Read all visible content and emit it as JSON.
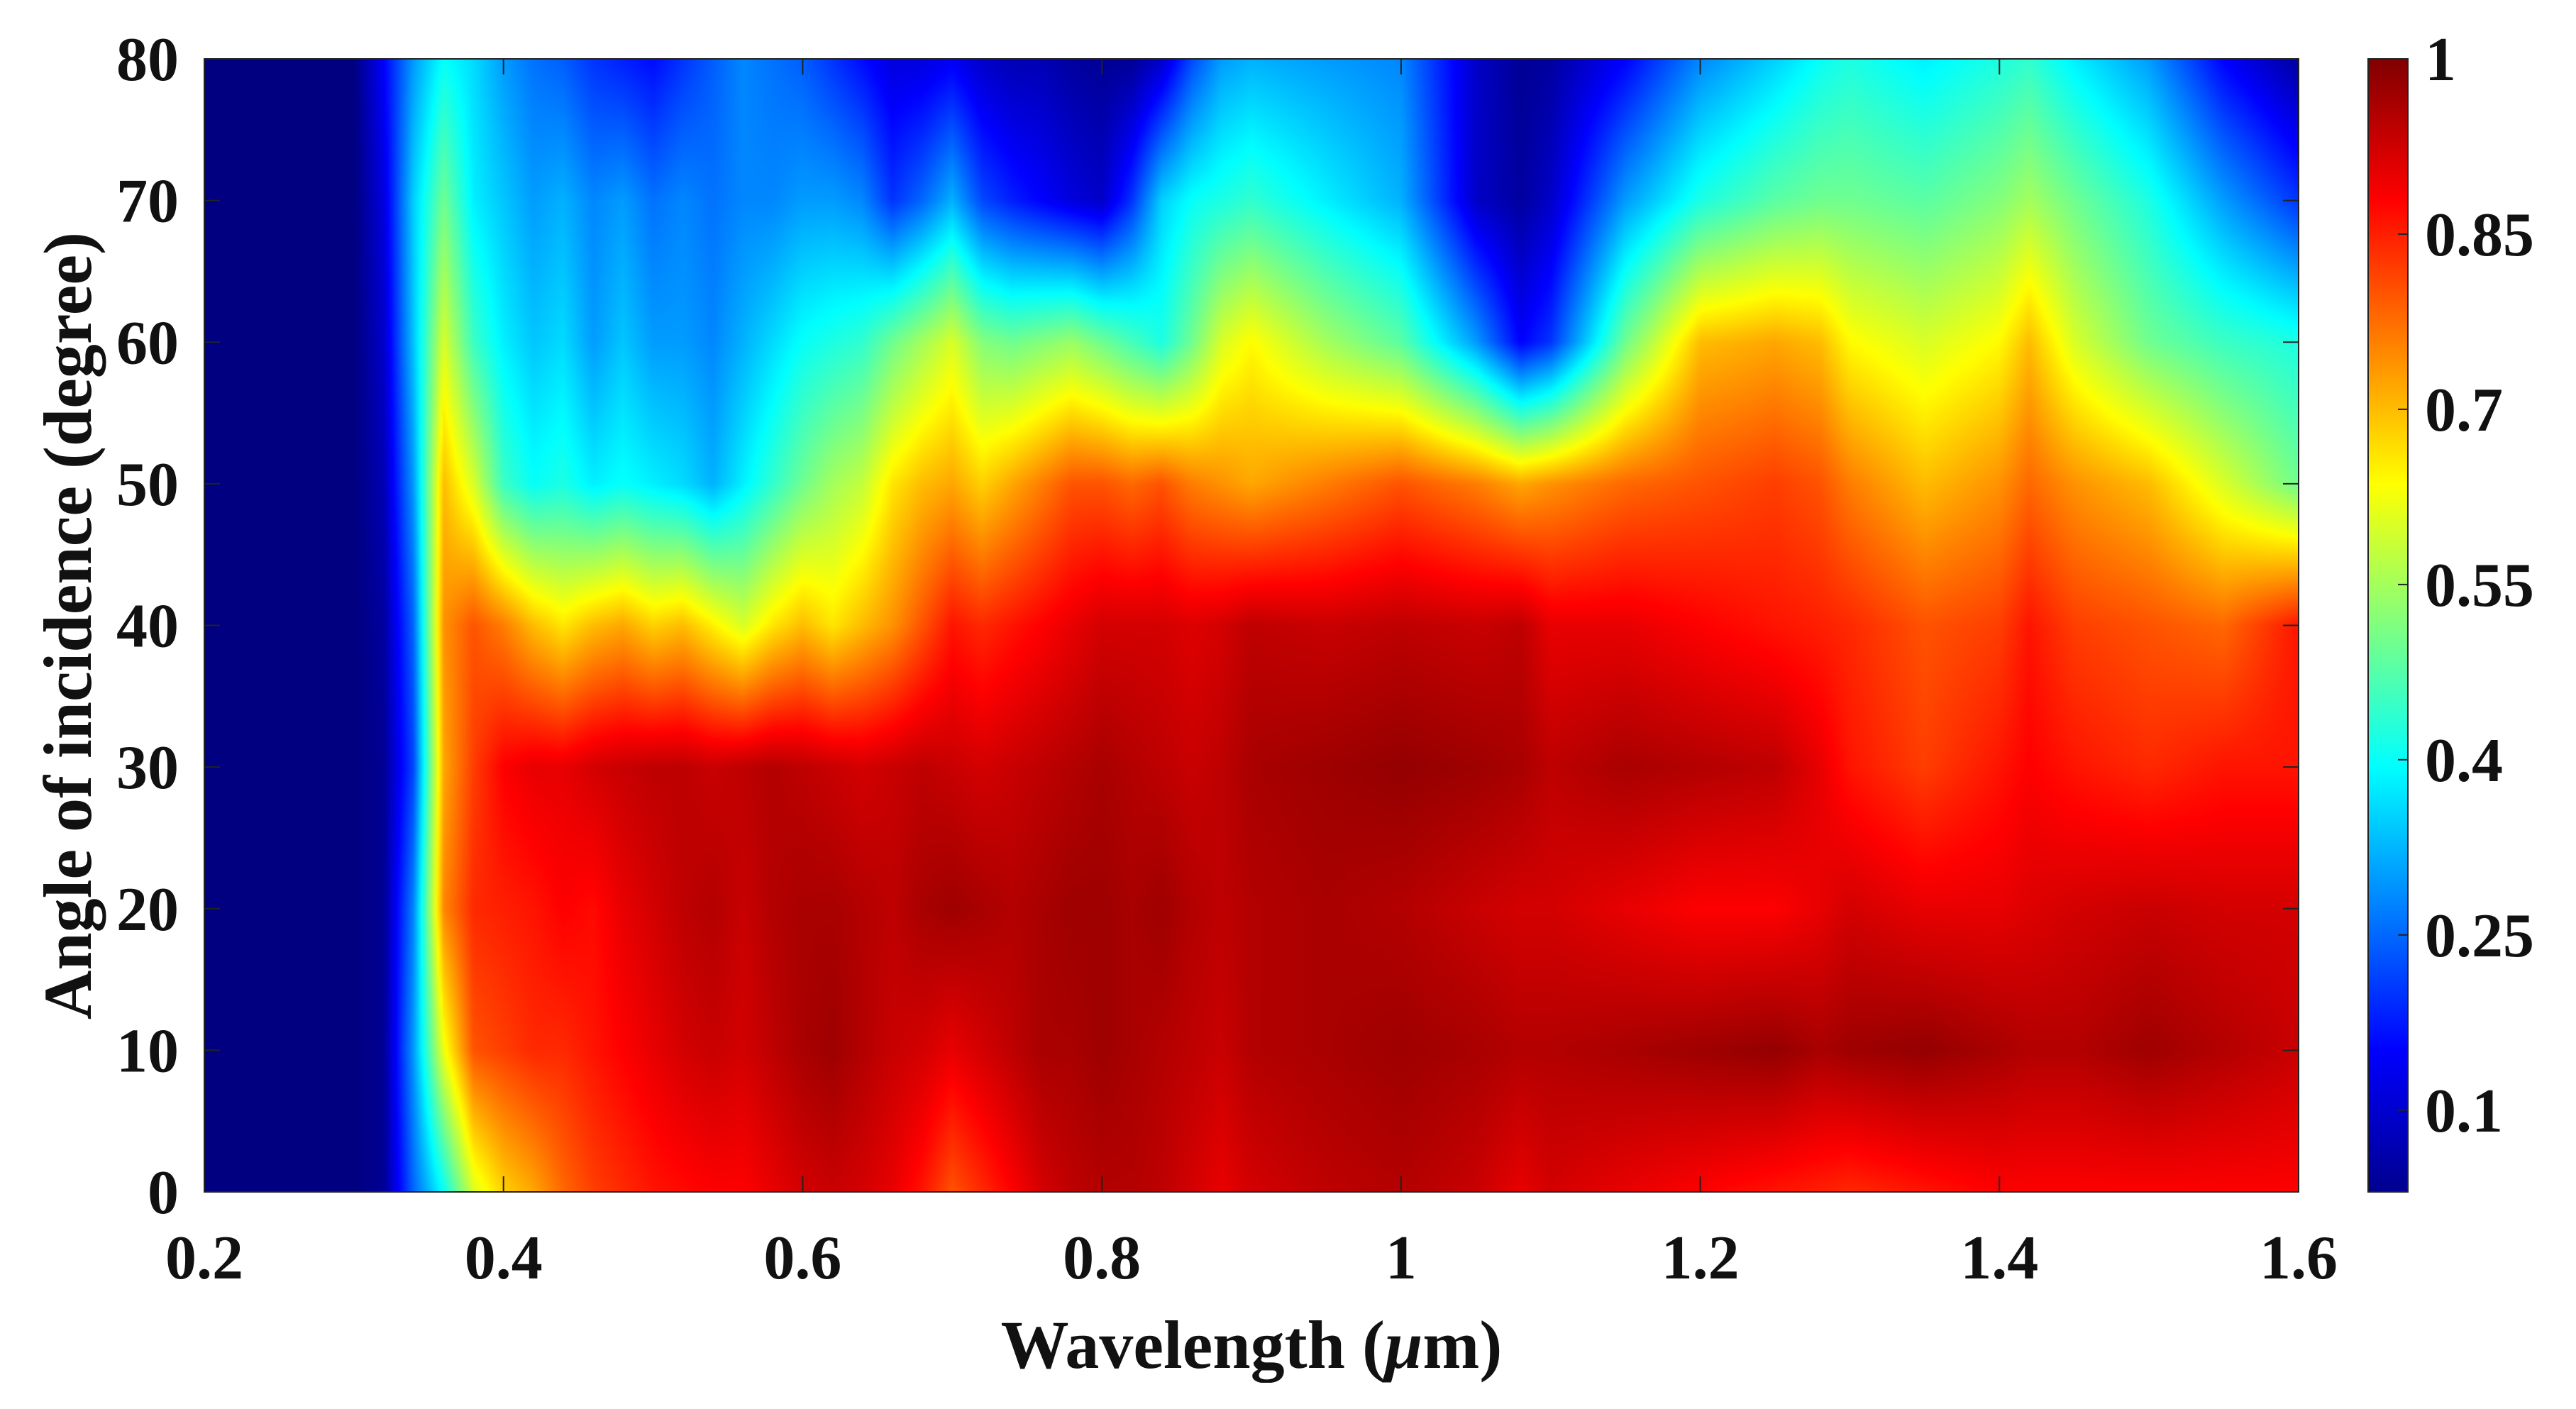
{
  "chart_data": {
    "type": "heatmap",
    "title": "",
    "xlabel": "Wavelength (",
    "xlabel_symbol": "μ",
    "xlabel_unit": "m)",
    "ylabel": "Angle of incidence (degree)",
    "xlim": [
      0.2,
      1.6
    ],
    "ylim": [
      0,
      80
    ],
    "x_ticks": [
      0.2,
      0.4,
      0.6,
      0.8,
      1.0,
      1.2,
      1.4,
      1.6
    ],
    "x_tick_labels": [
      "0.2",
      "0.4",
      "0.6",
      "0.8",
      "1",
      "1.2",
      "1.4",
      "1.6"
    ],
    "y_ticks": [
      0,
      10,
      20,
      30,
      40,
      50,
      60,
      70,
      80
    ],
    "y_tick_labels": [
      "0",
      "10",
      "20",
      "30",
      "40",
      "50",
      "60",
      "70",
      "80"
    ],
    "colorbar": {
      "range": [
        0.03,
        1.0
      ],
      "ticks": [
        0.1,
        0.25,
        0.4,
        0.55,
        0.7,
        0.85,
        1.0
      ],
      "tick_labels": [
        "0.1",
        "0.25",
        "0.4",
        "0.55",
        "0.7",
        "0.85",
        "1"
      ],
      "colormap": "jet"
    },
    "x": [
      0.2,
      0.3,
      0.32,
      0.34,
      0.36,
      0.38,
      0.4,
      0.42,
      0.44,
      0.46,
      0.48,
      0.5,
      0.52,
      0.54,
      0.56,
      0.58,
      0.6,
      0.62,
      0.64,
      0.66,
      0.68,
      0.7,
      0.72,
      0.74,
      0.76,
      0.78,
      0.8,
      0.82,
      0.84,
      0.86,
      0.88,
      0.9,
      0.95,
      1.0,
      1.05,
      1.08,
      1.1,
      1.15,
      1.2,
      1.25,
      1.28,
      1.3,
      1.35,
      1.4,
      1.42,
      1.45,
      1.5,
      1.55,
      1.6
    ],
    "y": [
      0,
      10,
      20,
      30,
      40,
      50,
      60,
      70,
      80
    ],
    "z": [
      [
        0.03,
        0.03,
        0.05,
        0.25,
        0.4,
        0.6,
        0.68,
        0.72,
        0.78,
        0.82,
        0.84,
        0.86,
        0.87,
        0.88,
        0.88,
        0.9,
        0.92,
        0.93,
        0.92,
        0.9,
        0.86,
        0.8,
        0.84,
        0.88,
        0.92,
        0.94,
        0.95,
        0.95,
        0.94,
        0.92,
        0.9,
        0.92,
        0.94,
        0.95,
        0.93,
        0.9,
        0.92,
        0.9,
        0.88,
        0.86,
        0.85,
        0.84,
        0.86,
        0.88,
        0.88,
        0.88,
        0.88,
        0.88,
        0.88
      ],
      [
        0.03,
        0.03,
        0.05,
        0.3,
        0.62,
        0.8,
        0.82,
        0.84,
        0.84,
        0.86,
        0.88,
        0.9,
        0.92,
        0.93,
        0.92,
        0.94,
        0.96,
        0.97,
        0.95,
        0.93,
        0.92,
        0.9,
        0.92,
        0.94,
        0.96,
        0.96,
        0.97,
        0.96,
        0.95,
        0.94,
        0.93,
        0.95,
        0.96,
        0.97,
        0.96,
        0.95,
        0.95,
        0.96,
        0.97,
        0.98,
        0.96,
        0.97,
        0.98,
        0.96,
        0.95,
        0.95,
        0.97,
        0.95,
        0.93
      ],
      [
        0.03,
        0.03,
        0.05,
        0.28,
        0.75,
        0.84,
        0.85,
        0.86,
        0.88,
        0.87,
        0.9,
        0.92,
        0.94,
        0.95,
        0.93,
        0.95,
        0.96,
        0.96,
        0.95,
        0.94,
        0.96,
        0.97,
        0.96,
        0.95,
        0.96,
        0.97,
        0.97,
        0.96,
        0.97,
        0.95,
        0.94,
        0.95,
        0.96,
        0.95,
        0.93,
        0.92,
        0.92,
        0.9,
        0.88,
        0.88,
        0.9,
        0.92,
        0.9,
        0.9,
        0.91,
        0.92,
        0.93,
        0.92,
        0.92
      ],
      [
        0.03,
        0.03,
        0.05,
        0.22,
        0.72,
        0.82,
        0.88,
        0.9,
        0.9,
        0.92,
        0.93,
        0.94,
        0.94,
        0.93,
        0.94,
        0.95,
        0.94,
        0.93,
        0.92,
        0.93,
        0.94,
        0.93,
        0.92,
        0.93,
        0.94,
        0.95,
        0.96,
        0.95,
        0.94,
        0.93,
        0.94,
        0.96,
        0.97,
        0.98,
        0.97,
        0.96,
        0.94,
        0.96,
        0.95,
        0.94,
        0.9,
        0.86,
        0.82,
        0.86,
        0.88,
        0.86,
        0.84,
        0.86,
        0.86
      ],
      [
        0.03,
        0.03,
        0.06,
        0.25,
        0.74,
        0.8,
        0.76,
        0.7,
        0.66,
        0.7,
        0.72,
        0.68,
        0.7,
        0.65,
        0.6,
        0.66,
        0.7,
        0.66,
        0.7,
        0.74,
        0.8,
        0.86,
        0.84,
        0.86,
        0.88,
        0.9,
        0.92,
        0.92,
        0.92,
        0.91,
        0.92,
        0.94,
        0.93,
        0.94,
        0.93,
        0.94,
        0.9,
        0.9,
        0.88,
        0.86,
        0.85,
        0.84,
        0.8,
        0.82,
        0.86,
        0.82,
        0.8,
        0.78,
        0.86
      ],
      [
        0.03,
        0.03,
        0.08,
        0.3,
        0.7,
        0.6,
        0.45,
        0.4,
        0.42,
        0.38,
        0.4,
        0.38,
        0.36,
        0.32,
        0.38,
        0.44,
        0.5,
        0.55,
        0.58,
        0.66,
        0.7,
        0.72,
        0.68,
        0.72,
        0.76,
        0.8,
        0.8,
        0.78,
        0.8,
        0.76,
        0.74,
        0.72,
        0.76,
        0.8,
        0.76,
        0.72,
        0.74,
        0.78,
        0.8,
        0.82,
        0.8,
        0.76,
        0.7,
        0.74,
        0.78,
        0.74,
        0.7,
        0.6,
        0.5
      ],
      [
        0.03,
        0.03,
        0.1,
        0.34,
        0.6,
        0.45,
        0.38,
        0.34,
        0.36,
        0.3,
        0.34,
        0.3,
        0.3,
        0.28,
        0.32,
        0.36,
        0.4,
        0.42,
        0.44,
        0.5,
        0.55,
        0.6,
        0.52,
        0.5,
        0.52,
        0.54,
        0.5,
        0.46,
        0.42,
        0.5,
        0.6,
        0.64,
        0.55,
        0.48,
        0.3,
        0.15,
        0.2,
        0.5,
        0.7,
        0.72,
        0.7,
        0.64,
        0.6,
        0.64,
        0.7,
        0.6,
        0.5,
        0.45,
        0.42
      ],
      [
        0.03,
        0.03,
        0.12,
        0.35,
        0.5,
        0.38,
        0.34,
        0.3,
        0.32,
        0.28,
        0.3,
        0.26,
        0.28,
        0.26,
        0.28,
        0.28,
        0.3,
        0.3,
        0.28,
        0.2,
        0.25,
        0.32,
        0.22,
        0.18,
        0.15,
        0.12,
        0.1,
        0.2,
        0.35,
        0.4,
        0.42,
        0.44,
        0.38,
        0.32,
        0.1,
        0.06,
        0.1,
        0.3,
        0.42,
        0.48,
        0.5,
        0.5,
        0.48,
        0.52,
        0.55,
        0.5,
        0.42,
        0.3,
        0.2
      ],
      [
        0.03,
        0.03,
        0.15,
        0.3,
        0.4,
        0.36,
        0.3,
        0.26,
        0.24,
        0.2,
        0.18,
        0.16,
        0.2,
        0.24,
        0.28,
        0.26,
        0.24,
        0.2,
        0.16,
        0.12,
        0.12,
        0.14,
        0.1,
        0.08,
        0.08,
        0.06,
        0.05,
        0.05,
        0.1,
        0.22,
        0.3,
        0.32,
        0.3,
        0.28,
        0.1,
        0.05,
        0.06,
        0.15,
        0.28,
        0.35,
        0.4,
        0.42,
        0.38,
        0.42,
        0.44,
        0.38,
        0.3,
        0.15,
        0.06
      ]
    ]
  }
}
